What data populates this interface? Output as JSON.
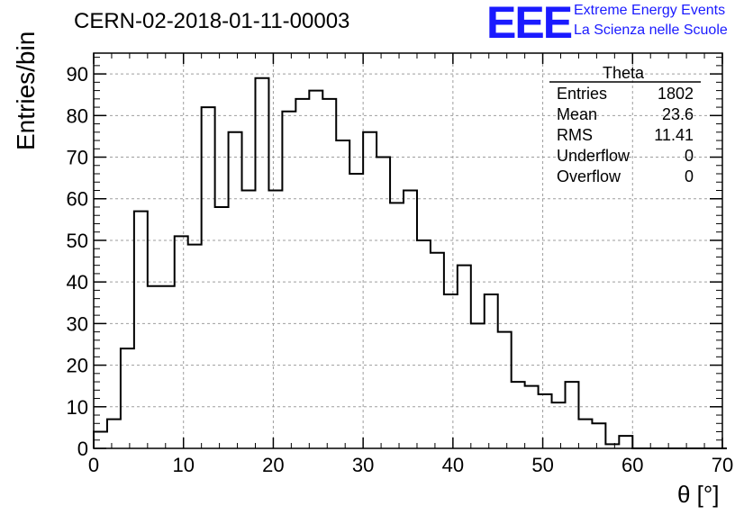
{
  "title": "CERN-02-2018-01-11-00003",
  "logo": {
    "mark": "EEE",
    "line1": "Extreme Energy Events",
    "line2": "La Scienza nelle Scuole"
  },
  "colors": {
    "logo": "#1a1aff",
    "line": "#000000",
    "grid": "#9e9e9e"
  },
  "stats": {
    "header": "Theta",
    "rows": [
      {
        "label": "Entries",
        "value": "1802"
      },
      {
        "label": "Mean",
        "value": "23.6"
      },
      {
        "label": "RMS",
        "value": "11.41"
      },
      {
        "label": "Underflow",
        "value": "0"
      },
      {
        "label": "Overflow",
        "value": "0"
      }
    ]
  },
  "chart_data": {
    "type": "bar",
    "style": "step-histogram",
    "xlabel": "θ [°]",
    "ylabel": "Entries/bin",
    "xlim": [
      0,
      70
    ],
    "ylim": [
      0,
      95
    ],
    "xticks": [
      0,
      10,
      20,
      30,
      40,
      50,
      60,
      70
    ],
    "yticks": [
      0,
      10,
      20,
      30,
      40,
      50,
      60,
      70,
      80,
      90
    ],
    "grid": true,
    "bin_width": 1.5,
    "bin_edges_start": 0,
    "values": [
      4,
      7,
      24,
      57,
      39,
      39,
      51,
      49,
      82,
      58,
      76,
      62,
      89,
      62,
      81,
      84,
      86,
      84,
      74,
      66,
      76,
      70,
      59,
      62,
      50,
      47,
      37,
      44,
      30,
      37,
      28,
      16,
      15,
      13,
      11,
      16,
      7,
      6,
      1,
      3,
      0,
      0,
      0,
      0,
      0,
      0,
      0
    ]
  }
}
